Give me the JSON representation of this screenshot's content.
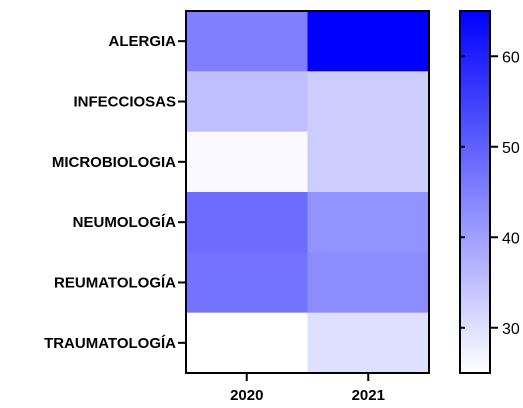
{
  "chart_data": {
    "type": "heatmap",
    "title": "",
    "xlabel": "",
    "ylabel": "",
    "columns": [
      "2020",
      "2021"
    ],
    "rows": [
      "ALERGIA",
      "INFECCIOSAS",
      "MICROBIOLOGIA",
      "NEUMOLOGÍA",
      "REUMATOLOGÍA",
      "TRAUMATOLOGÍA"
    ],
    "values": [
      [
        45,
        65
      ],
      [
        35,
        33
      ],
      [
        26,
        33
      ],
      [
        48,
        42
      ],
      [
        47,
        43
      ],
      [
        25,
        30
      ]
    ],
    "colorbar": {
      "min": 25,
      "max": 65,
      "ticks": [
        30,
        40,
        50,
        60
      ],
      "tick_labels": [
        "30",
        "40",
        "50",
        "60"
      ],
      "low_color": "#ffffff",
      "high_color": "#0000ff"
    },
    "grid": false,
    "legend": "right"
  }
}
